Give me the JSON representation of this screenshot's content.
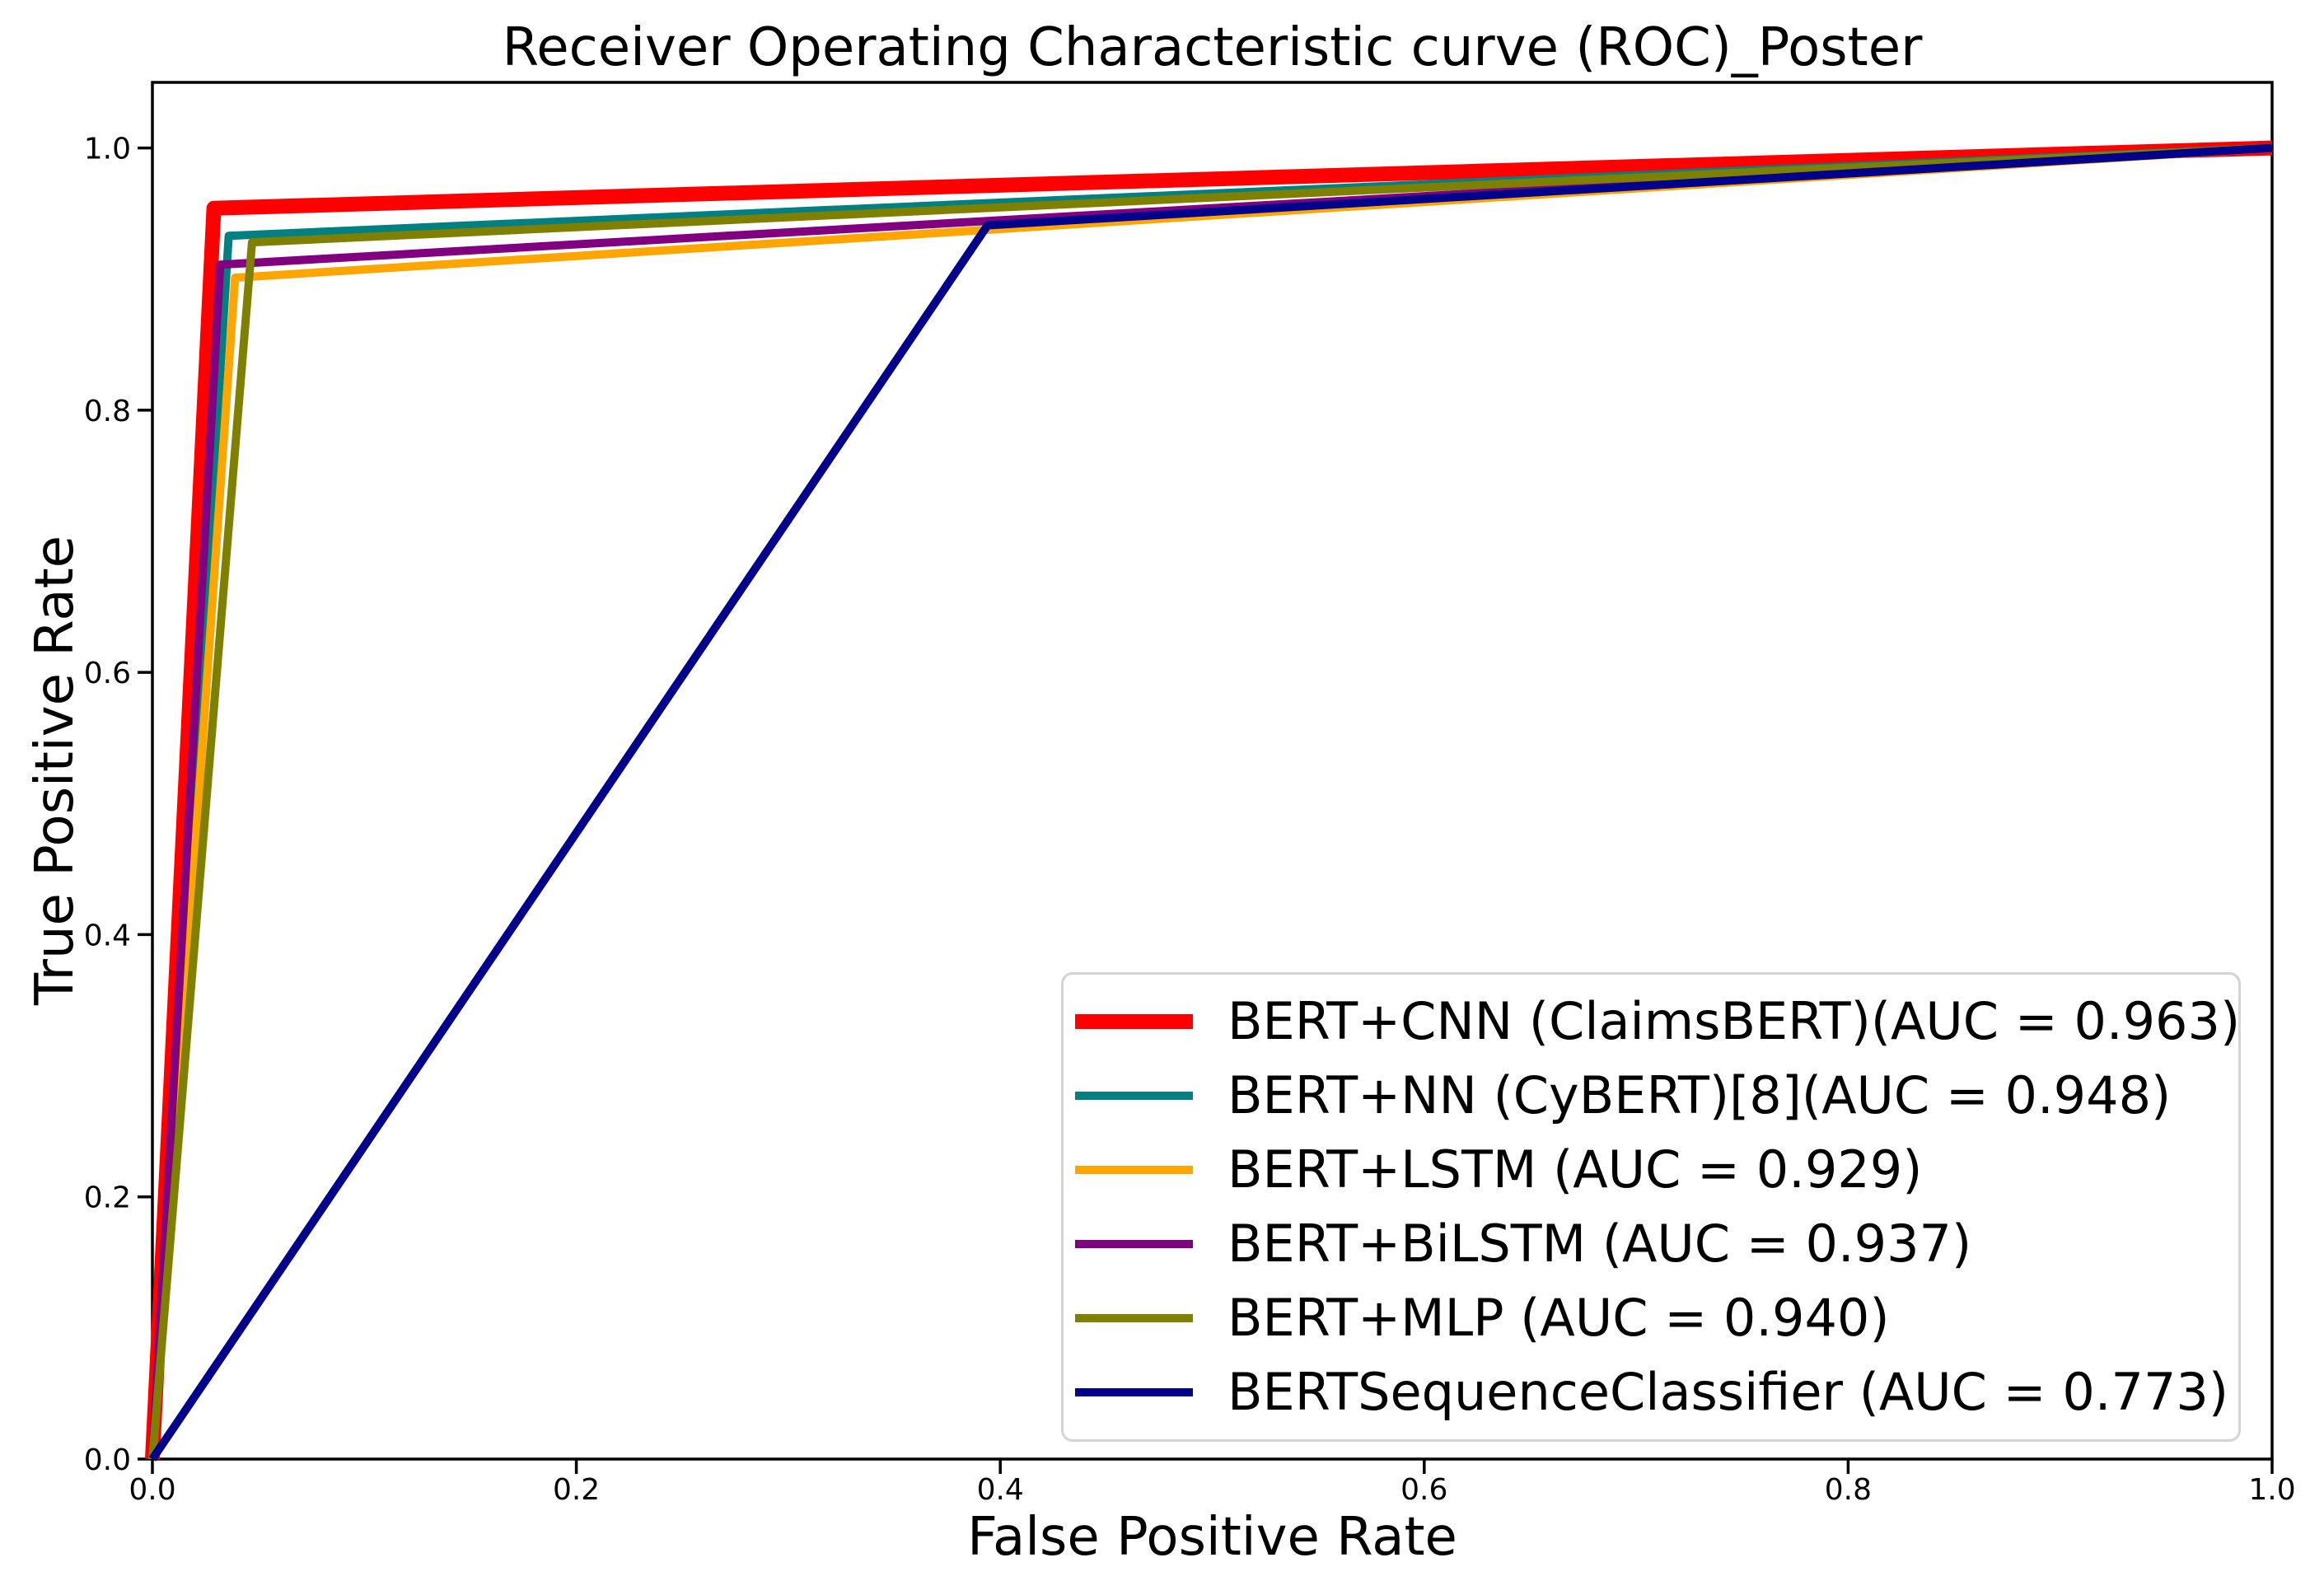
{
  "chart_data": {
    "type": "line",
    "title": "Receiver Operating Characteristic curve (ROC)_Poster",
    "xlabel": "False Positive Rate",
    "ylabel": "True Positive Rate",
    "xlim": [
      0.0,
      1.0
    ],
    "ylim": [
      0.0,
      1.05
    ],
    "x_ticks": [
      0.0,
      0.2,
      0.4,
      0.6,
      0.8,
      1.0
    ],
    "y_ticks": [
      0.0,
      0.2,
      0.4,
      0.6,
      0.8,
      1.0
    ],
    "grid": false,
    "legend_position": "lower right",
    "axis_color": "#000000",
    "background_color": "#ffffff",
    "legend_border_color": "#d4d4d4",
    "series": [
      {
        "name": "BERT+CNN (ClaimsBERT)(AUC = 0.963)",
        "auc": 0.963,
        "color": "#ff0000",
        "linewidth": 18,
        "points": [
          [
            0.0,
            0.0
          ],
          [
            0.029,
            0.954
          ],
          [
            1.0,
            1.0
          ]
        ]
      },
      {
        "name": "BERT+NN (CyBERT)[8](AUC = 0.948)",
        "auc": 0.948,
        "color": "#008080",
        "linewidth": 10,
        "points": [
          [
            0.0,
            0.0
          ],
          [
            0.036,
            0.933
          ],
          [
            1.0,
            1.0
          ]
        ]
      },
      {
        "name": "BERT+LSTM (AUC = 0.929)",
        "auc": 0.929,
        "color": "#ffa500",
        "linewidth": 10,
        "points": [
          [
            0.0,
            0.0
          ],
          [
            0.039,
            0.901
          ],
          [
            1.0,
            1.0
          ]
        ]
      },
      {
        "name": "BERT+BiLSTM (AUC = 0.937)",
        "auc": 0.937,
        "color": "#800080",
        "linewidth": 10,
        "points": [
          [
            0.0,
            0.0
          ],
          [
            0.032,
            0.911
          ],
          [
            1.0,
            1.0
          ]
        ]
      },
      {
        "name": "BERT+MLP (AUC = 0.940)",
        "auc": 0.94,
        "color": "#808000",
        "linewidth": 10,
        "points": [
          [
            0.0,
            0.0
          ],
          [
            0.047,
            0.928
          ],
          [
            1.0,
            1.0
          ]
        ]
      },
      {
        "name": "BERTSequenceClassifier (AUC = 0.773)",
        "auc": 0.773,
        "color": "#00008b",
        "linewidth": 10,
        "points": [
          [
            0.0,
            0.0
          ],
          [
            0.394,
            0.941
          ],
          [
            1.0,
            1.0
          ]
        ]
      }
    ]
  }
}
